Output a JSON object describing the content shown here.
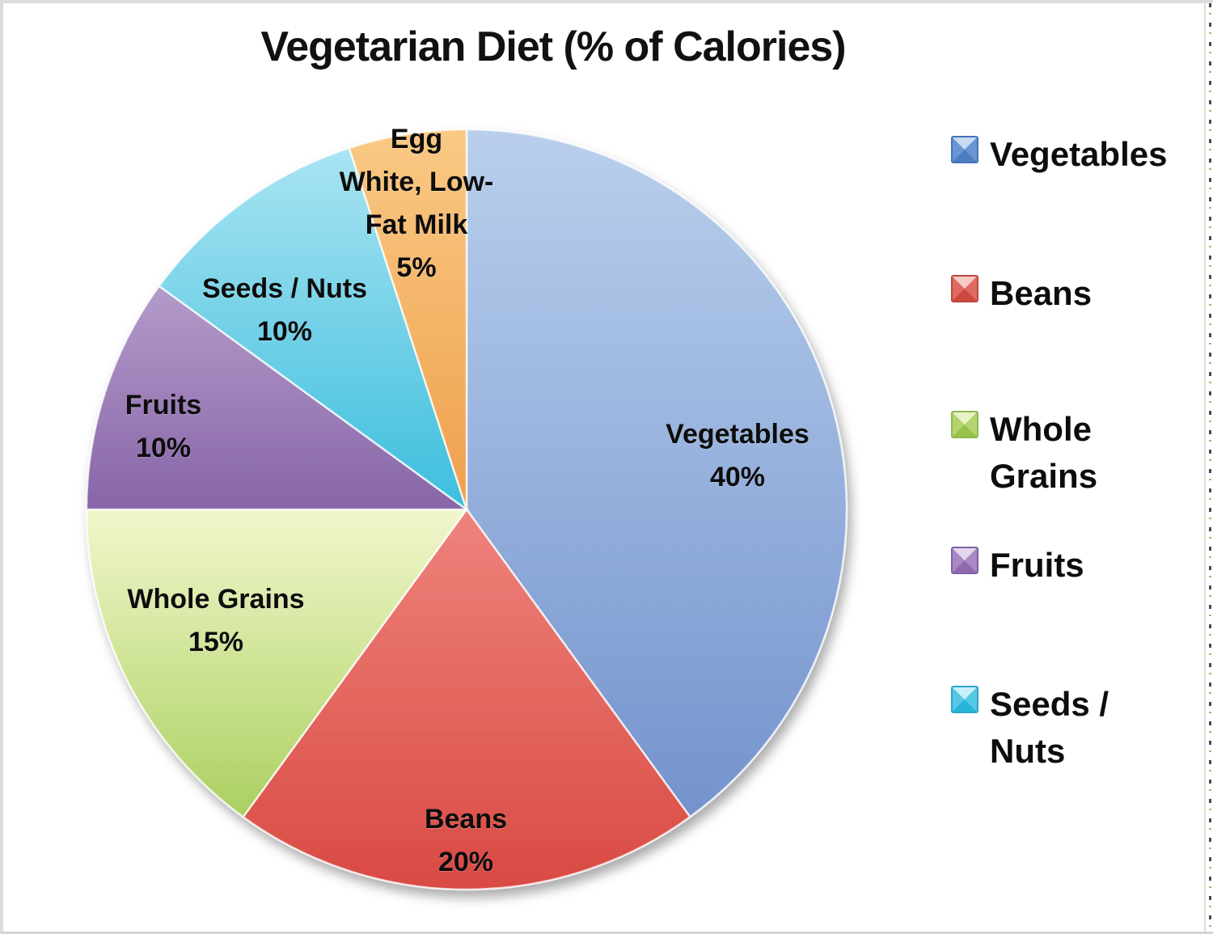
{
  "title": "Vegetarian Diet (% of Calories)",
  "chart_data": {
    "type": "pie",
    "title": "Vegetarian Diet (% of Calories)",
    "unit": "%",
    "start_angle_deg": 0,
    "direction": "clockwise",
    "categories": [
      "Vegetables",
      "Beans",
      "Whole Grains",
      "Fruits",
      "Seeds / Nuts",
      "Egg White, Low-Fat Milk"
    ],
    "values": [
      40,
      20,
      15,
      10,
      10,
      5
    ],
    "legend_position": "right",
    "slices": [
      {
        "name": "Vegetables",
        "value": 40,
        "slug": "vegetables",
        "color_light": "#b9cfec",
        "color_base": "#7493cd"
      },
      {
        "name": "Beans",
        "value": 20,
        "slug": "beans",
        "color_light": "#ee837c",
        "color_base": "#d94a43"
      },
      {
        "name": "Whole Grains",
        "value": 15,
        "slug": "whole-grains",
        "color_light": "#f2f7cc",
        "color_base": "#abd061"
      },
      {
        "name": "Fruits",
        "value": 10,
        "slug": "fruits",
        "color_light": "#b39bc9",
        "color_base": "#8765a8"
      },
      {
        "name": "Seeds / Nuts",
        "value": 10,
        "slug": "seeds-nuts",
        "color_light": "#a9e4f2",
        "color_base": "#3cbedd"
      },
      {
        "name": "Egg White, Low-Fat Milk",
        "value": 5,
        "slug": "egg-white-low-fat-milk",
        "color_light": "#f9c984",
        "color_base": "#efa04c"
      }
    ]
  },
  "slice_labels": {
    "vegetables": {
      "lines": [
        "Vegetables",
        "40%"
      ]
    },
    "beans": {
      "lines": [
        "Beans",
        "20%"
      ]
    },
    "whole_grains": {
      "lines": [
        "Whole Grains",
        "15%"
      ]
    },
    "fruits": {
      "lines": [
        "Fruits",
        "10%"
      ]
    },
    "seeds_nuts": {
      "lines": [
        "Seeds / Nuts",
        "10%"
      ]
    },
    "egg": {
      "lines": [
        "Egg",
        "White, Low-",
        "Fat Milk",
        "5%"
      ]
    }
  },
  "legend": {
    "items": [
      {
        "label": "Vegetables",
        "lines": [
          "Vegetables"
        ],
        "icon": {
          "top": "#c8dbf2",
          "side": "#6b96d3",
          "bottom": "#4d7ec4",
          "border": "#4273b8"
        }
      },
      {
        "label": "Beans",
        "lines": [
          "Beans"
        ],
        "icon": {
          "top": "#f5cac7",
          "side": "#e06a63",
          "bottom": "#cc4740",
          "border": "#b94940"
        }
      },
      {
        "label": "Whole Grains",
        "lines": [
          "Whole",
          "Grains"
        ],
        "icon": {
          "top": "#e8f2c8",
          "side": "#b5d36e",
          "bottom": "#98c14a",
          "border": "#8fb654"
        }
      },
      {
        "label": "Fruits",
        "lines": [
          "Fruits"
        ],
        "icon": {
          "top": "#e3d7ee",
          "side": "#a989c4",
          "bottom": "#8e6bae",
          "border": "#7e62a3"
        }
      },
      {
        "label": "Seeds / Nuts",
        "lines": [
          "Seeds /",
          "Nuts"
        ],
        "icon": {
          "top": "#c9f0f9",
          "side": "#55c8e4",
          "bottom": "#27b4d8",
          "border": "#2aa6c8"
        }
      }
    ]
  }
}
